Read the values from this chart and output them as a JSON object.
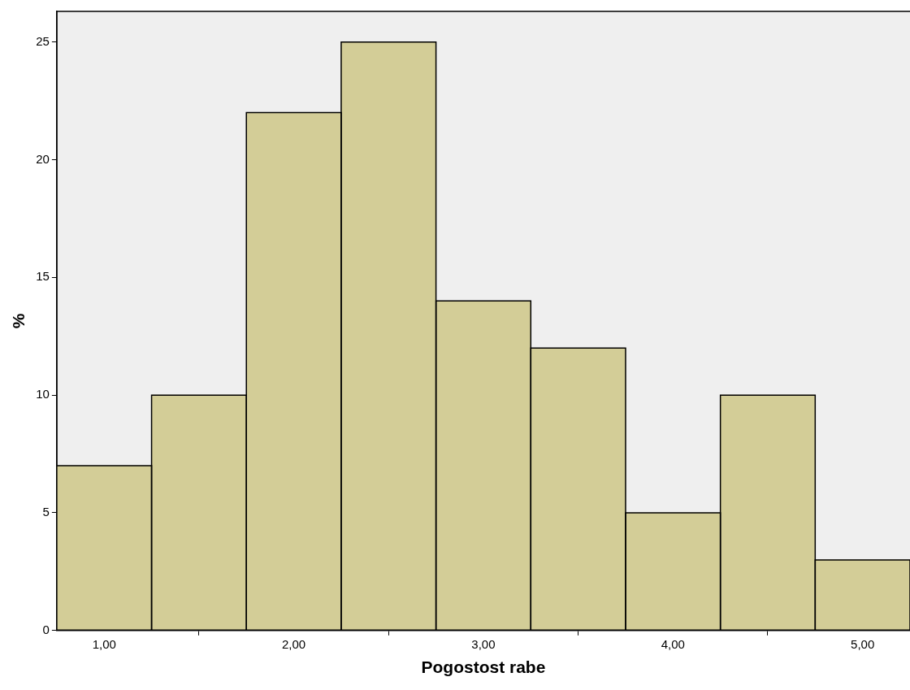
{
  "chart_data": {
    "type": "histogram",
    "xlabel": "Pogostost rabe",
    "ylabel": "%",
    "bins": [
      0.75,
      1.25,
      1.75,
      2.25,
      2.75,
      3.25,
      3.75,
      4.25,
      4.75,
      5.25
    ],
    "values": [
      7,
      10,
      22,
      25,
      14,
      12,
      5,
      10,
      3
    ],
    "color": "#d3cd97",
    "xlim": [
      0.75,
      5.25
    ],
    "xticks": [
      {
        "value": 1,
        "label": "1,00"
      },
      {
        "value": 2,
        "label": "2,00"
      },
      {
        "value": 3,
        "label": "3,00"
      },
      {
        "value": 4,
        "label": "4,00"
      },
      {
        "value": 5,
        "label": "5,00"
      }
    ],
    "ylim": [
      0,
      26.3
    ],
    "yticks": [
      0,
      5,
      10,
      15,
      20,
      25
    ],
    "grid": false,
    "legend": false
  }
}
